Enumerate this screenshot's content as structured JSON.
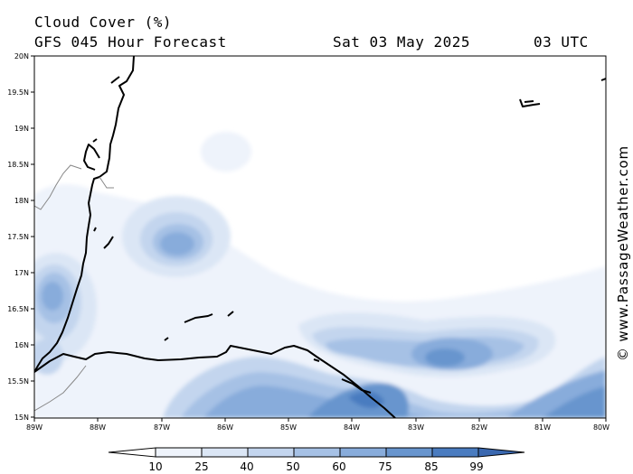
{
  "header": {
    "title": "Cloud Cover (%)",
    "model": "GFS 045 Hour Forecast",
    "date": "Sat 03 May 2025",
    "time": "03 UTC"
  },
  "credit": "© www.PassageWeather.com",
  "lat_labels": [
    "20N",
    "19.5N",
    "19N",
    "18.5N",
    "18N",
    "17.5N",
    "17N",
    "16.5N",
    "16N",
    "15.5N",
    "15N"
  ],
  "lon_labels": [
    "89W",
    "88W",
    "87W",
    "86W",
    "85W",
    "84W",
    "83W",
    "82W",
    "81W",
    "80W"
  ],
  "colorbar": {
    "labels": [
      "10",
      "25",
      "40",
      "50",
      "60",
      "75",
      "85",
      "99"
    ],
    "colors": [
      "#ffffff",
      "#eef3fb",
      "#dbe6f5",
      "#c3d5ee",
      "#a6c1e5",
      "#88acdb",
      "#6895ce",
      "#4a7cc0",
      "#3a68b0"
    ]
  }
}
